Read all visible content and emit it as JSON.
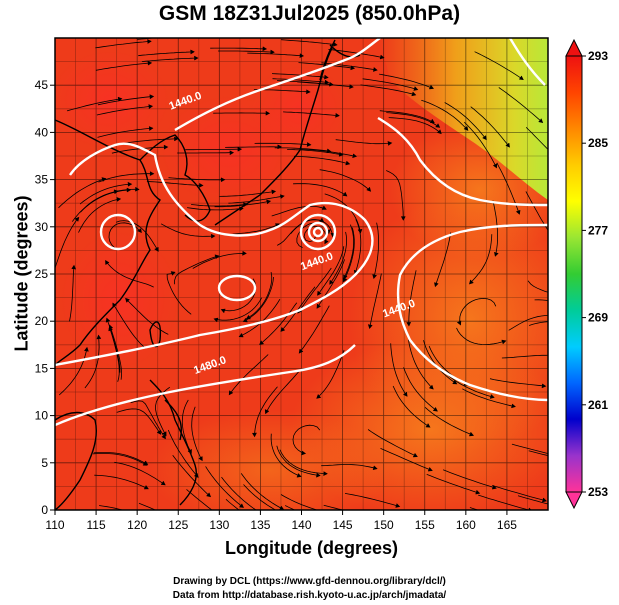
{
  "title": "GSM 18Z31Jul2025 (850.0hPa)",
  "xlabel": "Longitude (degrees)",
  "ylabel": "Latitude  (degrees)",
  "credits": [
    "Drawing by DCL (https://www.gfd-dennou.org/library/dcl/)",
    "Data from http://database.rish.kyoto-u.ac.jp/arch/jmadata/"
  ],
  "map": {
    "lon_range": [
      110,
      170
    ],
    "lat_range": [
      0,
      50
    ],
    "lon_ticks": [
      110,
      115,
      120,
      125,
      130,
      135,
      140,
      145,
      150,
      155,
      160,
      165
    ],
    "lat_ticks": [
      0,
      5,
      10,
      15,
      20,
      25,
      30,
      35,
      40,
      45
    ],
    "grid": true,
    "streamlines": true,
    "contour_labels": [
      {
        "text": "1440.0",
        "lon": 126,
        "lat": 43
      },
      {
        "text": "1440.0",
        "lon": 142,
        "lat": 26
      },
      {
        "text": "1440.0",
        "lon": 152,
        "lat": 21
      },
      {
        "text": "1480.0",
        "lon": 129,
        "lat": 15
      }
    ],
    "fill_colors": {
      "base": "#ee3b1a",
      "warm_high": "#e52222",
      "orange": "#f26a1c",
      "yellow_green": "#c8e830",
      "land_outline": "#000000",
      "contour": "#ffffff"
    }
  },
  "colorbar": {
    "ticks": [
      "293",
      "285",
      "277",
      "269",
      "261",
      "253"
    ],
    "min": 253,
    "max": 293,
    "stops": [
      "#ff3399",
      "#9933cc",
      "#0000cc",
      "#0066ff",
      "#00ccff",
      "#00cc99",
      "#33cc33",
      "#99e633",
      "#ffff00",
      "#ffcc00",
      "#ff8800",
      "#ff4400",
      "#ee1111"
    ]
  }
}
